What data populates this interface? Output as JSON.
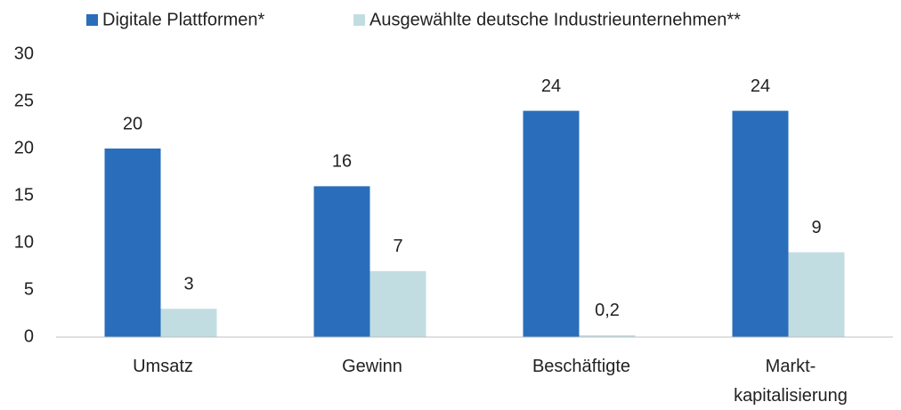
{
  "chart_data": {
    "type": "bar",
    "categories": [
      "Umsatz",
      "Gewinn",
      "Beschäftigte",
      "Markt-\nkapitalisierung"
    ],
    "series": [
      {
        "name": "Digitale Plattformen*",
        "color": "#2a6ebb",
        "values": [
          20,
          16,
          24,
          24
        ]
      },
      {
        "name": "Ausgewählte deutsche Industrieunternehmen**",
        "color": "#c2dde1",
        "values": [
          3,
          7,
          0.2,
          9
        ],
        "value_labels": [
          "3",
          "7",
          "0,2",
          "9"
        ]
      }
    ],
    "ylim": [
      0,
      30
    ],
    "yticks": [
      0,
      5,
      10,
      15,
      20,
      25,
      30
    ],
    "grid": false,
    "legend": "top"
  }
}
